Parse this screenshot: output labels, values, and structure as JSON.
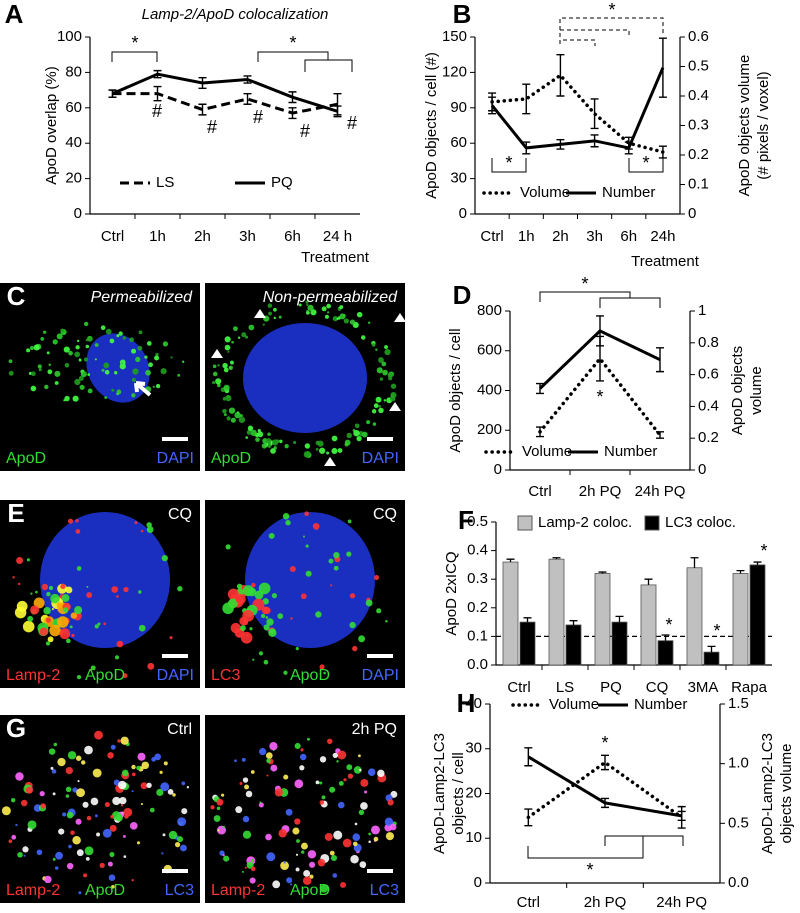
{
  "chart_data": [
    {
      "type": "line",
      "panel": "A",
      "title": "Lamp-2/ApoD colocalization",
      "ylabel": "ApoD overlap (%)",
      "xlabel": "Treatment",
      "categories": [
        "Ctrl",
        "1h",
        "2h",
        "3h",
        "6h",
        "24 h"
      ],
      "ylim": [
        0,
        100
      ],
      "yticks": [
        0,
        20,
        40,
        60,
        80,
        100
      ],
      "series": [
        {
          "name": "LS",
          "color": "#000000",
          "style": "dashed",
          "values": [
            68,
            68,
            59,
            65,
            57,
            62
          ],
          "errors": [
            2,
            4,
            3,
            3,
            3,
            6
          ]
        },
        {
          "name": "PQ",
          "color": "#000000",
          "style": "solid",
          "values": [
            68,
            79,
            74,
            76,
            66,
            58
          ],
          "errors": [
            2,
            2,
            3,
            2,
            3,
            3
          ]
        }
      ],
      "annotations": [
        "*",
        "*",
        "#",
        "#",
        "#",
        "#",
        "#"
      ]
    },
    {
      "type": "line",
      "panel": "B",
      "ylabel": "ApoD objects / cell (#)",
      "y2label": [
        "ApoD objects volume",
        "(# pixels / voxel)"
      ],
      "xlabel": "Treatment",
      "categories": [
        "Ctrl",
        "1h",
        "2h",
        "3h",
        "6h",
        "24h"
      ],
      "ylim": [
        0,
        150
      ],
      "yticks": [
        0,
        30,
        60,
        90,
        120,
        150
      ],
      "y2lim": [
        0,
        0.6
      ],
      "y2ticks": [
        0,
        0.1,
        0.2,
        0.3,
        0.4,
        0.5,
        0.6
      ],
      "series": [
        {
          "name": "Volume",
          "color": "#000000",
          "style": "dotted",
          "axis": "y2",
          "values": [
            0.38,
            0.39,
            0.47,
            0.34,
            0.24,
            0.21
          ],
          "errors": [
            0.03,
            0.05,
            0.07,
            0.05,
            0.02,
            0.02
          ]
        },
        {
          "name": "Number",
          "color": "#000000",
          "style": "solid",
          "values": [
            92,
            56,
            59,
            62,
            56,
            124
          ],
          "errors": [
            7,
            5,
            4,
            5,
            5,
            25
          ]
        }
      ],
      "annotations": [
        "*",
        "*",
        "*"
      ]
    },
    {
      "type": "line",
      "panel": "D",
      "ylabel": "ApoD objects / cell",
      "y2label": [
        "ApoD objects",
        "volume"
      ],
      "categories": [
        "Ctrl",
        "2h PQ",
        "24h PQ"
      ],
      "ylim": [
        0,
        800
      ],
      "yticks": [
        0,
        200,
        400,
        600,
        800
      ],
      "y2lim": [
        0,
        1
      ],
      "y2ticks": [
        0,
        0.2,
        0.4,
        0.6,
        0.8,
        1
      ],
      "series": [
        {
          "name": "Volume",
          "color": "#000000",
          "style": "dotted",
          "axis": "y2",
          "values": [
            0.24,
            0.7,
            0.22
          ],
          "errors": [
            0.03,
            0.14,
            0.02
          ]
        },
        {
          "name": "Number",
          "color": "#000000",
          "style": "solid",
          "values": [
            410,
            700,
            555
          ],
          "errors": [
            25,
            75,
            60
          ]
        }
      ],
      "annotations": [
        "*",
        "*"
      ]
    },
    {
      "type": "bar",
      "panel": "F",
      "ylabel": "ApoD 2xICQ",
      "categories": [
        "Ctrl",
        "LS",
        "PQ",
        "CQ",
        "3MA",
        "Rapa"
      ],
      "ylim": [
        0,
        0.5
      ],
      "yticks": [
        {
          "value": 0,
          "label": "0.0"
        },
        0.1,
        0.2,
        0.3,
        0.4,
        0.5
      ],
      "series": [
        {
          "name": "Lamp-2 coloc.",
          "color": "#c0c0c0",
          "values": [
            0.36,
            0.37,
            0.32,
            0.28,
            0.34,
            0.32
          ],
          "errors": [
            0.01,
            0.005,
            0.005,
            0.02,
            0.035,
            0.01
          ]
        },
        {
          "name": "LC3 coloc.",
          "color": "#000000",
          "values": [
            0.15,
            0.14,
            0.15,
            0.085,
            0.045,
            0.35
          ],
          "errors": [
            0.015,
            0.015,
            0.02,
            0.02,
            0.02,
            0.01
          ]
        }
      ],
      "reference_line": 0.1,
      "annotations": [
        "*",
        "*",
        "*"
      ]
    },
    {
      "type": "line",
      "panel": "H",
      "ylabel": [
        "ApoD-Lamp2-LC3",
        "objects / cell"
      ],
      "y2label": [
        "ApoD-Lamp2-LC3",
        "objects volume"
      ],
      "categories": [
        "Ctrl",
        "2h PQ",
        "24h PQ"
      ],
      "ylim": [
        0,
        40
      ],
      "yticks": [
        0,
        10,
        20,
        30,
        40
      ],
      "y2lim": [
        0,
        1.5
      ],
      "y2ticks": [
        {
          "value": 0,
          "label": "0.0"
        },
        0.5,
        {
          "value": 1,
          "label": "1.0"
        },
        1.5
      ],
      "series": [
        {
          "name": "Volume",
          "color": "#000000",
          "style": "dotted",
          "axis": "y2",
          "values": [
            0.55,
            1.01,
            0.55
          ],
          "errors": [
            0.07,
            0.06,
            0.09
          ]
        },
        {
          "name": "Number",
          "color": "#000000",
          "style": "solid",
          "values": [
            28.2,
            17.9,
            15
          ],
          "errors": [
            2,
            1,
            1
          ]
        }
      ],
      "annotations": [
        "*",
        "*"
      ]
    }
  ],
  "images": [
    {
      "panel": "C",
      "tiles": [
        {
          "caption": "Permeabilized",
          "labels": [
            {
              "text": "ApoD",
              "color": "#33dd33"
            },
            {
              "text": "DAPI",
              "color": "#4466ff"
            }
          ]
        },
        {
          "caption": "Non-permeabilized",
          "labels": [
            {
              "text": "ApoD",
              "color": "#33dd33"
            },
            {
              "text": "DAPI",
              "color": "#4466ff"
            }
          ]
        }
      ]
    },
    {
      "panel": "E",
      "tiles": [
        {
          "caption": "CQ",
          "labels": [
            {
              "text": "Lamp-2",
              "color": "#ff3333"
            },
            {
              "text": "ApoD",
              "color": "#33dd33"
            },
            {
              "text": "DAPI",
              "color": "#4466ff"
            }
          ]
        },
        {
          "caption": "CQ",
          "labels": [
            {
              "text": "LC3",
              "color": "#ff3333"
            },
            {
              "text": "ApoD",
              "color": "#33dd33"
            },
            {
              "text": "DAPI",
              "color": "#4466ff"
            }
          ]
        }
      ]
    },
    {
      "panel": "G",
      "tiles": [
        {
          "caption": "Ctrl",
          "labels": [
            {
              "text": "Lamp-2",
              "color": "#ff3333"
            },
            {
              "text": "ApoD",
              "color": "#33dd33"
            },
            {
              "text": "LC3",
              "color": "#4466ff"
            }
          ]
        },
        {
          "caption": "2h PQ",
          "labels": [
            {
              "text": "Lamp-2",
              "color": "#ff3333"
            },
            {
              "text": "ApoD",
              "color": "#33dd33"
            },
            {
              "text": "LC3",
              "color": "#4466ff"
            }
          ]
        }
      ]
    }
  ]
}
